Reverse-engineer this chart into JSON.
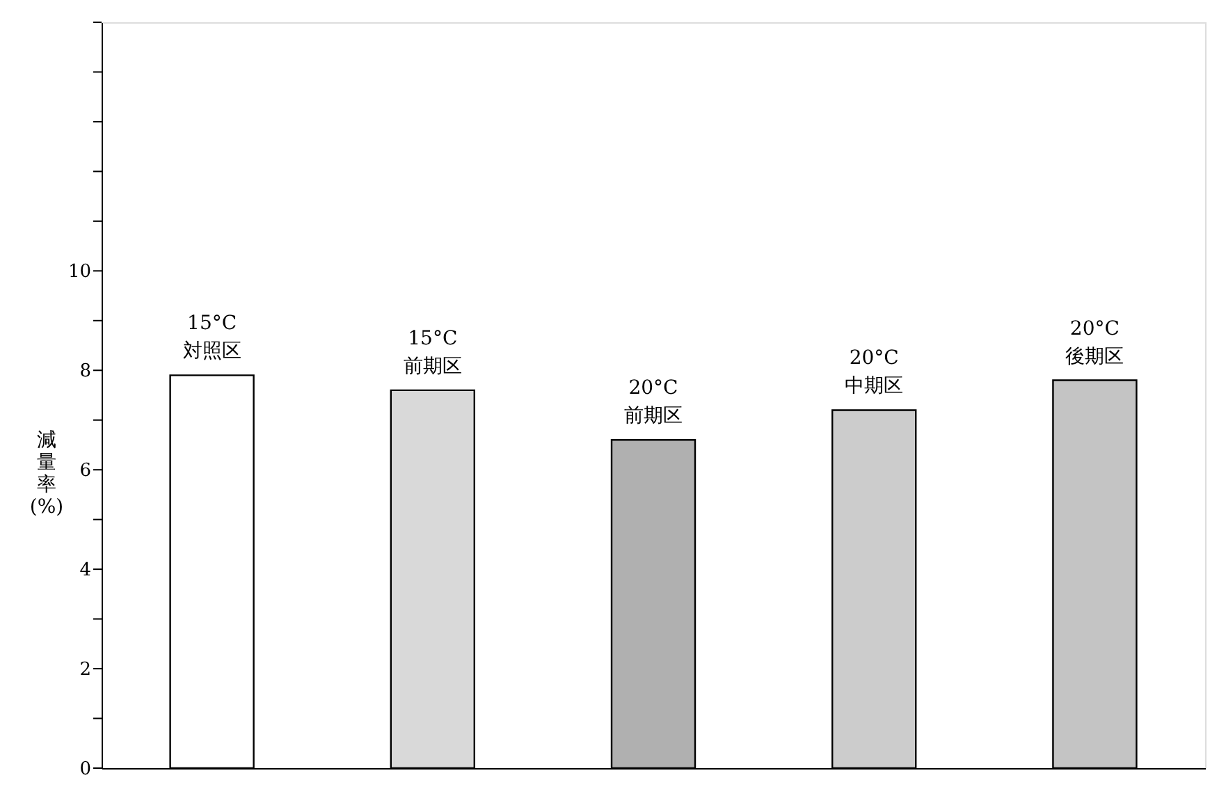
{
  "chart_data": {
    "type": "bar",
    "ylabel": "減量率(%)",
    "categories": [
      "15°C 対照区",
      "15°C 前期区",
      "20°C 前期区",
      "20°C 中期区",
      "20°C 後期区"
    ],
    "values": [
      7.9,
      7.6,
      6.6,
      7.2,
      7.8
    ],
    "colors": [
      "#ffffff",
      "#d9d9d9",
      "#b0b0b0",
      "#cccccc",
      "#c4c4c4"
    ],
    "ylim": [
      0,
      15
    ],
    "yticks": [
      0,
      {
        "value": 1,
        "label": null
      },
      2,
      {
        "value": 3,
        "label": null
      },
      4,
      {
        "value": 5,
        "label": null
      },
      6,
      {
        "value": 7,
        "label": null
      },
      8,
      {
        "value": 9,
        "label": null
      },
      10,
      {
        "value": 11,
        "label": null
      },
      {
        "value": 12,
        "label": null
      },
      {
        "value": 13,
        "label": null
      },
      {
        "value": 14,
        "label": null
      },
      {
        "value": 15,
        "label": null
      }
    ],
    "grid": false
  }
}
